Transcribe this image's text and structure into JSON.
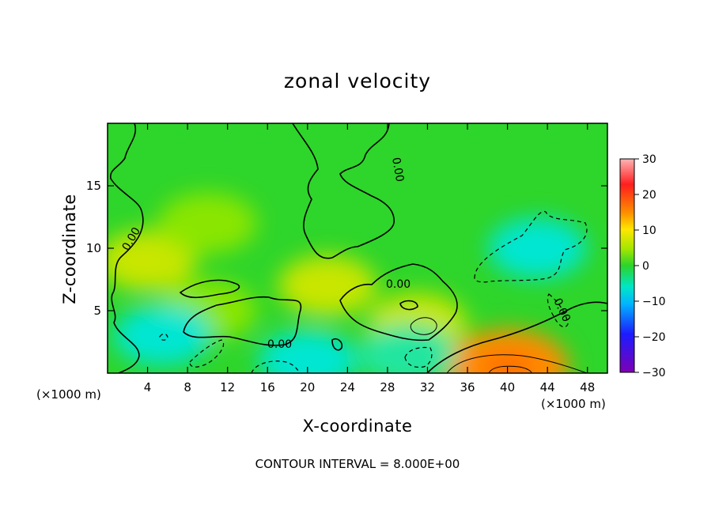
{
  "chart_data": {
    "type": "heatmap",
    "title": "zonal velocity",
    "xlabel": "X-coordinate",
    "ylabel": "Z-coordinate",
    "x_unit": "(×1000 m)",
    "footer": "CONTOUR INTERVAL = 8.000E+00",
    "xlim": [
      0,
      50
    ],
    "ylim": [
      0,
      20
    ],
    "x_ticks": [
      4,
      8,
      12,
      16,
      20,
      24,
      28,
      32,
      36,
      40,
      44,
      48
    ],
    "y_ticks": [
      5,
      10,
      15
    ],
    "colorbar": {
      "range": [
        -30,
        30
      ],
      "ticks": [
        30,
        20,
        10,
        0,
        -10,
        -20,
        -30
      ],
      "tick_labels": [
        "30",
        "20",
        "10",
        "0",
        "−10",
        "−20",
        "−30"
      ]
    },
    "contour_labels": [
      "0.00",
      "0.00",
      "0.00",
      "0.00",
      "0.00"
    ],
    "features": [
      {
        "x": 40,
        "y": 0.5,
        "value": 22
      },
      {
        "x": 31,
        "y": 4,
        "value": 10
      },
      {
        "x": 4,
        "y": 9,
        "value": 8
      },
      {
        "x": 10,
        "y": 12,
        "value": 6
      },
      {
        "x": 10,
        "y": 5,
        "value": 6
      },
      {
        "x": 22,
        "y": 7,
        "value": 8
      },
      {
        "x": 43,
        "y": 10,
        "value": -6
      },
      {
        "x": 20,
        "y": 1,
        "value": -5
      },
      {
        "x": 5.5,
        "y": 3,
        "value": -5
      },
      {
        "x": 30,
        "y": 1.5,
        "value": -4
      }
    ]
  },
  "colors": {
    "background_field": "#2ed52a",
    "colormap": [
      "#7d00b4",
      "#1c1cff",
      "#00b4ff",
      "#00e6c8",
      "#2bd42a",
      "#a5e600",
      "#ffe600",
      "#ff8c00",
      "#ff1e1e",
      "#ffb4b4"
    ]
  }
}
